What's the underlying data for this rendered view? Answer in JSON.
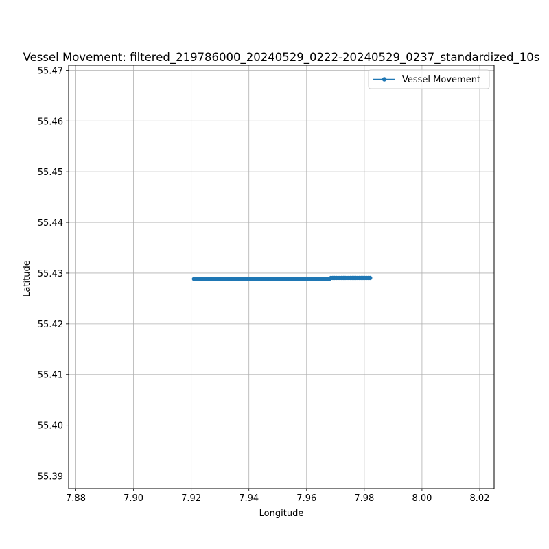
{
  "chart_data": {
    "type": "line",
    "title": "Vessel Movement: filtered_219786000_20240529_0222-20240529_0237_standardized_10s",
    "xlabel": "Longitude",
    "ylabel": "Latitude",
    "xlim": [
      7.8775,
      8.025
    ],
    "ylim": [
      55.3875,
      55.471
    ],
    "xticks": [
      7.88,
      7.9,
      7.92,
      7.94,
      7.96,
      7.98,
      8.0,
      8.02
    ],
    "xtick_labels": [
      "7.88",
      "7.90",
      "7.92",
      "7.94",
      "7.96",
      "7.98",
      "8.00",
      "8.02"
    ],
    "yticks": [
      55.39,
      55.4,
      55.41,
      55.42,
      55.43,
      55.44,
      55.45,
      55.46,
      55.47
    ],
    "ytick_labels": [
      "55.39",
      "55.40",
      "55.41",
      "55.42",
      "55.43",
      "55.44",
      "55.45",
      "55.46",
      "55.47"
    ],
    "grid": true,
    "legend_position": "upper right",
    "series": [
      {
        "name": "Vessel Movement",
        "color": "#1f77b4",
        "marker": "circle",
        "start": {
          "x": 7.921,
          "y": 55.42885
        },
        "end": {
          "x": 7.982,
          "y": 55.42905
        },
        "point_count": 100
      }
    ]
  }
}
